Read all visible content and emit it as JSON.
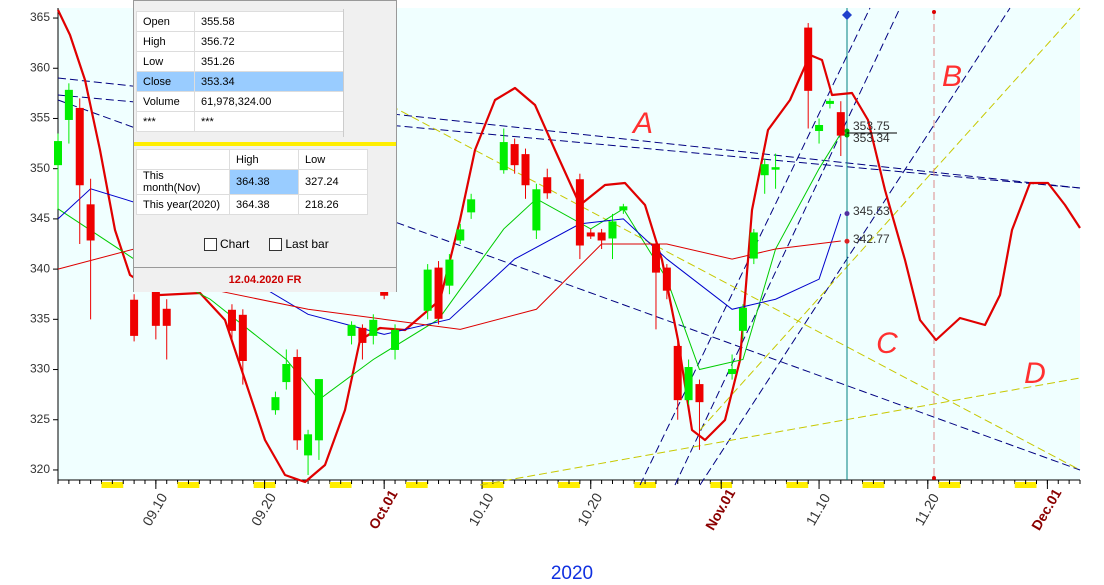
{
  "chart_data": {
    "type": "candlestick",
    "x": [
      "09.01",
      "09.02",
      "09.03",
      "09.04",
      "09.08",
      "09.10",
      "09.11",
      "09.17",
      "09.18",
      "09.21",
      "09.22",
      "09.23",
      "09.24",
      "09.25",
      "09.28",
      "09.29",
      "09.30",
      "10.01",
      "10.02",
      "10.05",
      "10.06",
      "10.07",
      "10.08",
      "10.09",
      "10.12",
      "10.13",
      "10.14",
      "10.15",
      "10.16",
      "10.19",
      "10.20",
      "10.21",
      "10.22",
      "10.23",
      "10.26",
      "10.27",
      "10.28",
      "10.29",
      "10.30",
      "11.02",
      "11.03",
      "11.04",
      "11.05",
      "11.06",
      "11.09",
      "11.10",
      "11.11",
      "11.12"
    ],
    "open": [
      350.4,
      354.9,
      356.0,
      346.4,
      336.9,
      337.9,
      336.0,
      335.9,
      335.4,
      326.0,
      328.8,
      331.2,
      321.5,
      323.0,
      333.4,
      334.1,
      333.4,
      338.4,
      332.0,
      335.9,
      340.1,
      338.4,
      342.9,
      345.7,
      349.9,
      352.4,
      351.4,
      343.9,
      349.1,
      348.9,
      343.6,
      343.6,
      343.1,
      345.9,
      342.4,
      340.1,
      332.3,
      327.0,
      328.5,
      329.6,
      333.9,
      341.1,
      349.4,
      350.0,
      364.0,
      353.8,
      356.5,
      355.58
    ],
    "high": [
      353.5,
      358.5,
      357.0,
      349.0,
      337.5,
      338.5,
      337.0,
      336.5,
      336.0,
      327.8,
      332.0,
      332.0,
      324.0,
      329.0,
      334.8,
      334.5,
      335.5,
      338.8,
      334.5,
      340.5,
      340.8,
      341.5,
      344.5,
      347.5,
      354.0,
      353.0,
      352.0,
      348.5,
      350.0,
      349.5,
      344.0,
      344.0,
      345.5,
      346.5,
      343.0,
      340.5,
      333.0,
      331.0,
      329.0,
      331.5,
      336.5,
      344.0,
      351.0,
      351.5,
      364.5,
      355.0,
      357.0,
      356.72
    ],
    "low": [
      346.0,
      352.5,
      342.5,
      335.0,
      332.8,
      333.0,
      331.0,
      333.0,
      328.5,
      325.5,
      328.0,
      322.0,
      319.5,
      321.0,
      332.5,
      331.0,
      332.5,
      337.0,
      331.0,
      335.0,
      334.5,
      337.5,
      342.5,
      345.0,
      349.5,
      349.5,
      347.0,
      343.0,
      347.0,
      341.0,
      343.0,
      342.0,
      341.0,
      345.5,
      334.0,
      337.0,
      325.0,
      326.5,
      322.0,
      329.0,
      333.0,
      340.5,
      347.5,
      348.0,
      354.0,
      352.5,
      356.0,
      351.26
    ],
    "close": [
      352.7,
      357.8,
      348.4,
      342.9,
      333.4,
      334.4,
      334.4,
      333.9,
      330.9,
      327.2,
      330.5,
      323.0,
      323.5,
      329.0,
      334.4,
      332.7,
      334.9,
      337.4,
      333.9,
      339.9,
      335.1,
      340.9,
      343.9,
      346.9,
      352.6,
      350.4,
      348.4,
      347.9,
      347.6,
      342.4,
      343.3,
      342.9,
      344.7,
      346.2,
      339.7,
      337.9,
      327.0,
      330.2,
      326.8,
      330.0,
      336.1,
      343.6,
      350.4,
      350.1,
      357.8,
      354.3,
      356.7,
      353.34
    ],
    "overlays": [
      {
        "color": "#00cc00",
        "x": [
          "09.01",
          "09.08",
          "09.15",
          "09.22",
          "09.25",
          "09.30",
          "10.06",
          "10.12",
          "10.15",
          "10.20",
          "10.23",
          "10.27",
          "10.30",
          "11.03",
          "11.06",
          "11.10",
          "11.12"
        ],
        "values": [
          346,
          341,
          337,
          331,
          327,
          331,
          335,
          344,
          347,
          344,
          346,
          339,
          330,
          331,
          342,
          350,
          353.5
        ]
      },
      {
        "color": "#0000cc",
        "x": [
          "09.01",
          "09.04",
          "09.10",
          "09.17",
          "09.24",
          "10.01",
          "10.07",
          "10.13",
          "10.19",
          "10.23",
          "10.27",
          "11.02",
          "11.06",
          "11.10",
          "11.12"
        ],
        "values": [
          345,
          348,
          346,
          340,
          335.5,
          333.5,
          335,
          341,
          344.5,
          345,
          341,
          336,
          337,
          339,
          345.5
        ]
      },
      {
        "color": "#dd0000",
        "x": [
          "09.01",
          "09.08",
          "09.15",
          "09.24",
          "10.01",
          "10.08",
          "10.15",
          "10.21",
          "10.27",
          "11.02",
          "11.06",
          "11.12"
        ],
        "values": [
          340,
          342,
          338,
          336,
          335,
          334,
          336,
          342.5,
          342.5,
          341,
          342,
          342.8
        ]
      }
    ],
    "up_color": "#00ee00",
    "down_color": "#ee0000",
    "xlim": [
      "09.01",
      "12.04"
    ],
    "xticks": [
      "09.10",
      "09.20",
      {
        "value": "10.01",
        "label": "Oct.01"
      },
      "10.10",
      "10.20",
      {
        "value": "11.01",
        "label": "Nov.01"
      },
      "11.10",
      "11.20",
      {
        "value": "12.01",
        "label": "Dec.01"
      }
    ],
    "xlabel": "2020",
    "ylim": [
      319,
      366
    ],
    "yticks": [
      320,
      325,
      330,
      335,
      340,
      345,
      350,
      355,
      360,
      365
    ],
    "price_labels": [
      353.75,
      353.34,
      345.53,
      342.77
    ],
    "annotations": [
      "A",
      "B",
      "C",
      "D"
    ]
  },
  "data_window": {
    "rows": [
      [
        "Open",
        "355.58"
      ],
      [
        "High",
        "356.72"
      ],
      [
        "Low",
        "351.26"
      ],
      [
        "Close",
        "353.34"
      ],
      [
        "Volume",
        "61,978,324.00"
      ],
      [
        "***",
        "***"
      ]
    ],
    "summary_header": [
      "High",
      "Low"
    ],
    "summary_rows": [
      [
        "This month(Nov)",
        "364.38",
        "327.24"
      ],
      [
        "This year(2020)",
        "364.38",
        "218.26"
      ]
    ],
    "checkboxes": [
      "Chart",
      "Last bar"
    ],
    "date": "12.04.2020 FR"
  }
}
